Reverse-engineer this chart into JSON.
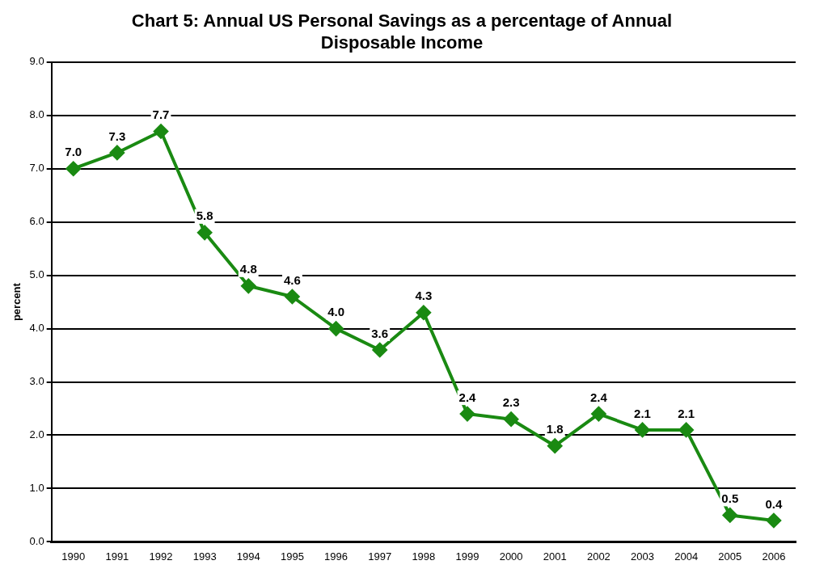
{
  "chart_data": {
    "type": "line",
    "title": "Chart 5: Annual US Personal Savings as a percentage of Annual Disposable Income",
    "ylabel": "percent",
    "categories": [
      "1990",
      "1991",
      "1992",
      "1993",
      "1994",
      "1995",
      "1996",
      "1997",
      "1998",
      "1999",
      "2000",
      "2001",
      "2002",
      "2003",
      "2004",
      "2005",
      "2006"
    ],
    "series": [
      {
        "color": "#1a8a12",
        "values": [
          7.0,
          7.3,
          7.7,
          5.8,
          4.8,
          4.6,
          4.0,
          3.6,
          4.3,
          2.4,
          2.3,
          1.8,
          2.4,
          2.1,
          2.1,
          0.5,
          0.4
        ],
        "value_labels": [
          "7.0",
          "7.3",
          "7.7",
          "5.8",
          "4.8",
          "4.6",
          "4.0",
          "3.6",
          "4.3",
          "2.4",
          "2.3",
          "1.8",
          "2.4",
          "2.1",
          "2.1",
          "0.5",
          "0.4"
        ]
      }
    ],
    "ylim": [
      0,
      9
    ],
    "yticks": [
      {
        "value": 0,
        "label": "0.0"
      },
      {
        "value": 1,
        "label": "1.0"
      },
      {
        "value": 2,
        "label": "2.0"
      },
      {
        "value": 3,
        "label": "3.0"
      },
      {
        "value": 4,
        "label": "4.0"
      },
      {
        "value": 5,
        "label": "5.0"
      },
      {
        "value": 6,
        "label": "6.0"
      },
      {
        "value": 7,
        "label": "7.0"
      },
      {
        "value": 8,
        "label": "8.0"
      },
      {
        "value": 9,
        "label": "9.0"
      }
    ],
    "grid": "y",
    "legend": false,
    "marker": "diamond",
    "line_style": "solid"
  }
}
